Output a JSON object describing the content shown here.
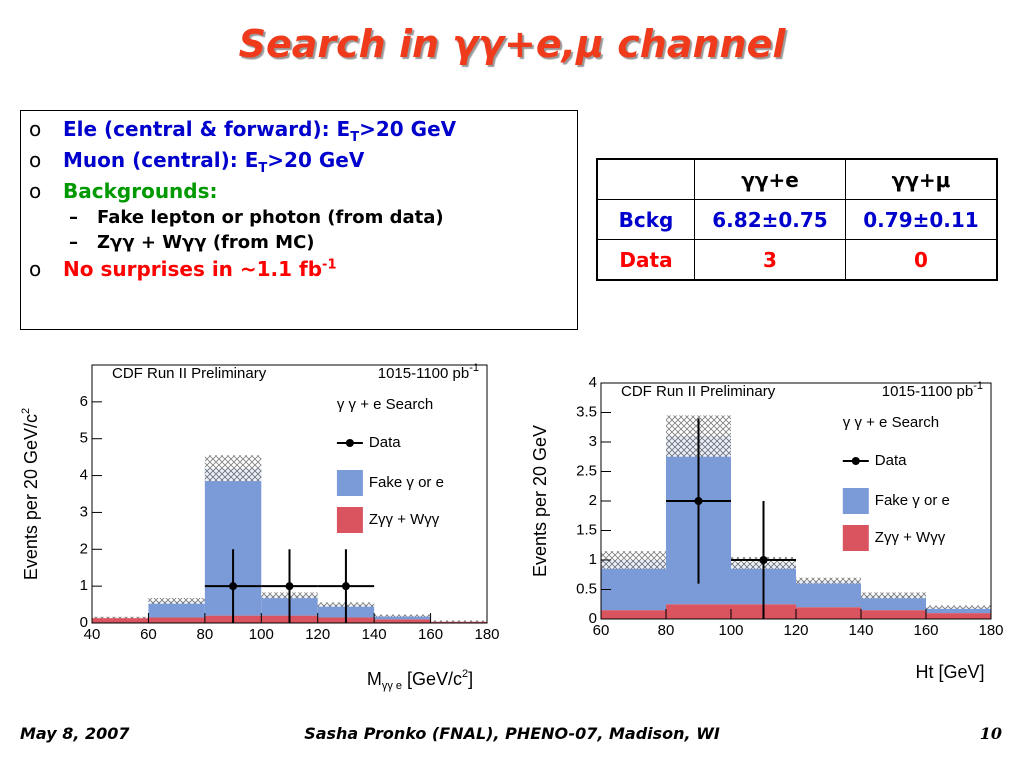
{
  "title": {
    "text": "Search in γγ+e,μ channel"
  },
  "bullet_marker": "o",
  "sub_marker": "–",
  "bullets": [
    {
      "text": "Ele (central & forward): E",
      "sub": "T",
      "rest": ">20 GeV"
    },
    {
      "text": "Muon (central): E",
      "sub": "T",
      "rest": ">20 GeV"
    },
    {
      "text": "Backgrounds:",
      "items": [
        "Fake lepton or photon (from data)",
        "Zγγ + Wγγ (from MC)"
      ]
    },
    {
      "text": "No surprises in ~1.1 fb",
      "sup": "-1"
    }
  ],
  "table": {
    "header": [
      "γγ+e",
      "γγ+μ"
    ],
    "rows": [
      [
        "Bckg",
        "6.82±0.75",
        "0.79±0.11"
      ],
      [
        "Data",
        3,
        0
      ]
    ]
  },
  "chart_data": [
    {
      "type": "histogram",
      "header_left": "CDF Run II Preliminary",
      "header_right": {
        "text": "1015-1100 pb",
        "sup": "-1"
      },
      "legend_title": "γ γ + e  Search",
      "ylabel": {
        "text": "Events per 20 GeV/c",
        "sup": "2"
      },
      "xlabel": {
        "text": "M",
        "sub": "γγ e",
        "rest": " [GeV/c",
        "sup": "2",
        "end": "]"
      },
      "bins": [
        40,
        60,
        80,
        100,
        120,
        140,
        160,
        180
      ],
      "series": [
        {
          "name": "Zγγ + Wγγ",
          "color": "#d9545f",
          "values": [
            0.15,
            0.15,
            0.2,
            0.2,
            0.15,
            0.1,
            0.05
          ]
        },
        {
          "name": "Fake γ or e",
          "color": "#7b9bd8",
          "values": [
            0,
            0.45,
            4.0,
            0.55,
            0.35,
            0.1,
            0
          ]
        }
      ],
      "errors": [
        0.02,
        0.08,
        0.35,
        0.08,
        0.06,
        0.03,
        0.02
      ],
      "points": {
        "name": "Data",
        "x": [
          90,
          110,
          130
        ],
        "y": [
          1,
          1,
          1
        ],
        "xerr": [
          10,
          10,
          10
        ],
        "yerr_low": [
          1,
          1,
          1
        ],
        "yerr_high": [
          1,
          1,
          1
        ]
      },
      "xlim": [
        40,
        180
      ],
      "xticks": [
        40,
        60,
        80,
        100,
        120,
        140,
        160,
        180
      ],
      "ylim": [
        0,
        7
      ],
      "yticks": [
        0,
        1,
        2,
        3,
        4,
        5,
        6
      ]
    },
    {
      "type": "histogram",
      "header_left": "CDF Run II Preliminary",
      "header_right": {
        "text": "1015-1100 pb",
        "sup": "-1"
      },
      "legend_title": "γ γ + e  Search",
      "ylabel": {
        "text": "Events per 20 GeV"
      },
      "xlabel": {
        "text": "Ht [GeV]"
      },
      "bins": [
        60,
        80,
        100,
        120,
        140,
        160,
        180
      ],
      "series": [
        {
          "name": "Zγγ + Wγγ",
          "color": "#d9545f",
          "values": [
            0.15,
            0.25,
            0.25,
            0.2,
            0.15,
            0.1
          ]
        },
        {
          "name": "Fake γ or e",
          "color": "#7b9bd8",
          "values": [
            0.85,
            2.85,
            0.7,
            0.45,
            0.25,
            0.1
          ]
        }
      ],
      "errors": [
        0.15,
        0.35,
        0.1,
        0.05,
        0.05,
        0.03
      ],
      "points": {
        "name": "Data",
        "x": [
          90,
          110
        ],
        "y": [
          2,
          1
        ],
        "xerr": [
          10,
          10
        ],
        "yerr_low": [
          1.4,
          1
        ],
        "yerr_high": [
          1.4,
          1
        ]
      },
      "xlim": [
        60,
        180
      ],
      "xticks": [
        60,
        80,
        100,
        120,
        140,
        160,
        180
      ],
      "ylim": [
        0,
        4
      ],
      "yticks": [
        0,
        0.5,
        1,
        1.5,
        2,
        2.5,
        3,
        3.5,
        4
      ]
    }
  ],
  "footer": {
    "date": "May 8, 2007",
    "author": "Sasha Pronko (FNAL), PHENO-07, Madison, WI",
    "page": 10
  }
}
